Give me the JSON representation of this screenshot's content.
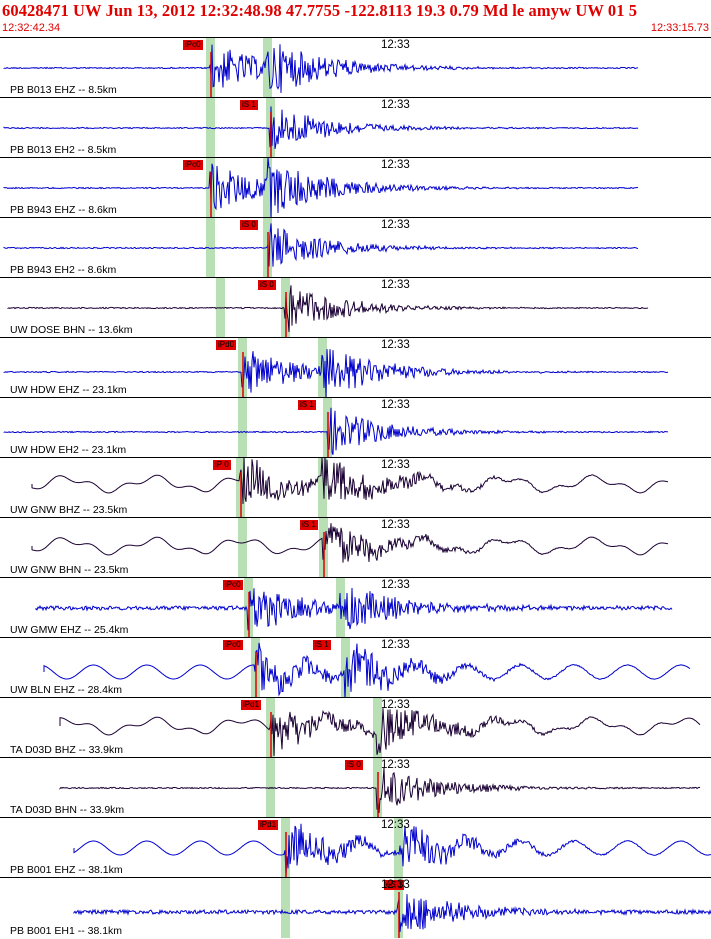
{
  "header": {
    "title": "60428471 UW Jun 13, 2012 12:32:48.98   47.7755 -122.8113 19.3 0.79 Md le amyw UW 01   5",
    "time_start": "12:32:42.34",
    "time_end": "12:33:15.73"
  },
  "colors": {
    "header_text": "#e00000",
    "trace_blue": "#0000cc",
    "trace_dark": "#1a0033",
    "pick_flag": "#e00000",
    "pick_window": "#b9e0b4"
  },
  "panels": [
    {
      "label": "PB B013 EHZ -- 8.5km",
      "time": "12:33",
      "pick": "iPc0",
      "pick2": "",
      "color": "blue",
      "style": "sharp",
      "shape": "flat"
    },
    {
      "label": "PB B013 EH2 -- 8.5km",
      "time": "12:33",
      "pick": "",
      "pick2": "iS 1",
      "color": "blue",
      "style": "sharp",
      "shape": "flat"
    },
    {
      "label": "PB B943 EHZ -- 8.6km",
      "time": "12:33",
      "pick": "iPc0",
      "pick2": "",
      "color": "blue",
      "style": "sharp",
      "shape": "flat"
    },
    {
      "label": "PB B943 EH2 -- 8.6km",
      "time": "12:33",
      "pick": "",
      "pick2": "iS 0",
      "color": "blue",
      "style": "sharp",
      "shape": "flat"
    },
    {
      "label": "UW DOSE BHN -- 13.6km",
      "time": "12:33",
      "pick": "",
      "pick2": "iS 0",
      "color": "dark",
      "style": "sharp",
      "shape": "flat"
    },
    {
      "label": "UW HDW EHZ -- 23.1km",
      "time": "12:33",
      "pick": "iPd0",
      "pick2": "",
      "color": "blue",
      "style": "sharp",
      "shape": "flat"
    },
    {
      "label": "UW HDW EH2 -- 23.1km",
      "time": "12:33",
      "pick": "",
      "pick2": "iS 1",
      "color": "blue",
      "style": "sharp",
      "shape": "flat"
    },
    {
      "label": "UW GNW BHZ -- 23.5km",
      "time": "12:33",
      "pick": "iP 0",
      "pick2": "",
      "color": "dark",
      "style": "wavy",
      "shape": "wavy"
    },
    {
      "label": "UW GNW BHN -- 23.5km",
      "time": "12:33",
      "pick": "",
      "pick2": "iS 1",
      "color": "dark",
      "style": "wavy",
      "shape": "wavy"
    },
    {
      "label": "UW GMW EHZ -- 25.4km",
      "time": "12:33",
      "pick": "iPc0",
      "pick2": "",
      "color": "blue",
      "style": "sharp",
      "shape": "noisy"
    },
    {
      "label": "UW BLN EHZ -- 28.4km",
      "time": "12:33",
      "pick": "iPc0",
      "pick2": "iS 1",
      "color": "blue",
      "style": "wavy",
      "shape": "sine"
    },
    {
      "label": "TA D03D BHZ -- 33.9km",
      "time": "12:33",
      "pick": "iPd1",
      "pick2": "",
      "color": "dark",
      "style": "wavy",
      "shape": "wavy"
    },
    {
      "label": "TA D03D BHN -- 33.9km",
      "time": "12:33",
      "pick": "",
      "pick2": "iS 0",
      "color": "dark",
      "style": "sharp",
      "shape": "flat"
    },
    {
      "label": "PB B001 EHZ -- 38.1km",
      "time": "12:33",
      "pick": "iPd1",
      "pick2": "",
      "color": "blue",
      "style": "wavy",
      "shape": "sine"
    },
    {
      "label": "PB B001 EH1 -- 38.1km",
      "time": "12:33",
      "pick": "",
      "pick2": "eS 1",
      "color": "blue",
      "style": "sharp",
      "shape": "noisy"
    }
  ]
}
